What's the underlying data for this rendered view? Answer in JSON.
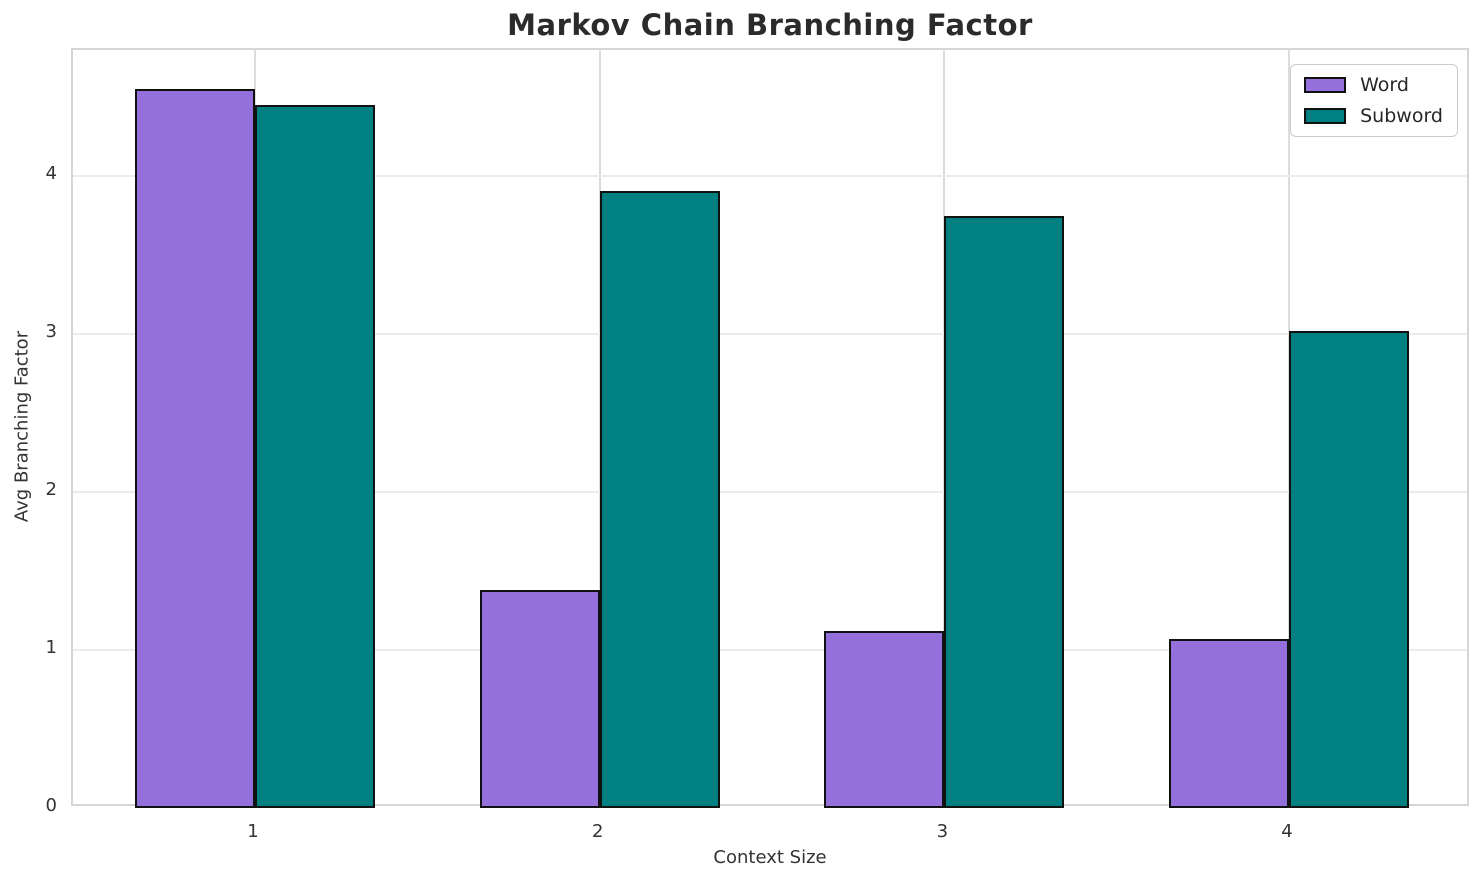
{
  "chart_data": {
    "type": "bar",
    "title": "Markov Chain Branching Factor",
    "xlabel": "Context Size",
    "ylabel": "Avg Branching Factor",
    "categories": [
      "1",
      "2",
      "3",
      "4"
    ],
    "series": [
      {
        "name": "Word",
        "color": "#9370DB",
        "values": [
          4.55,
          1.38,
          1.12,
          1.07
        ]
      },
      {
        "name": "Subword",
        "color": "#008080",
        "values": [
          4.45,
          3.91,
          3.75,
          3.02
        ]
      }
    ],
    "ylim": [
      0,
      4.8
    ],
    "yticks": [
      0,
      1,
      2,
      3,
      4
    ],
    "bar_edge_color": "#111111",
    "grid": true,
    "legend_position": "upper right",
    "legend_labels": [
      "Word",
      "Subword"
    ]
  }
}
